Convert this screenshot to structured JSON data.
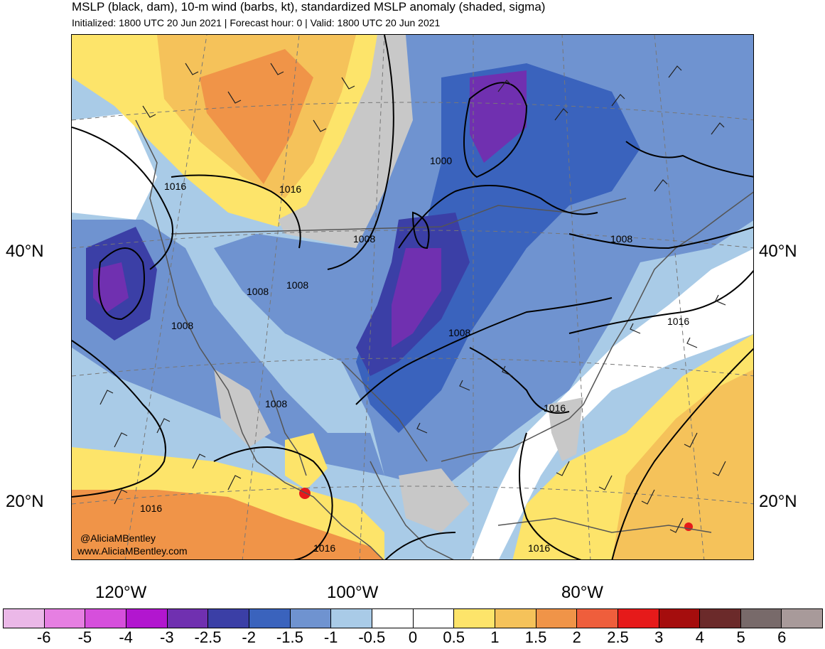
{
  "header": {
    "title": "MSLP (black, dam), 10-m wind (barbs, kt), standardized MSLP anomaly (shaded, sigma)",
    "subtitle": "Initialized: 1800 UTC 20 Jun 2021 | Forecast hour: 0 | Valid: 1800 UTC 20 Jun 2021"
  },
  "axes": {
    "lat_labels": [
      "40°N",
      "20°N"
    ],
    "lon_labels": [
      "120°W",
      "100°W",
      "80°W"
    ]
  },
  "isobars": {
    "labels": [
      "1016",
      "1016",
      "1000",
      "1008",
      "1008",
      "1008",
      "1008",
      "1008",
      "1008",
      "1016",
      "1016",
      "1008",
      "1016",
      "1016",
      "1016"
    ]
  },
  "credit": {
    "handle": "@AliciaMBentley",
    "website": "www.AliciaMBentley.com"
  },
  "colorbar": {
    "colors": [
      "#ebb8e8",
      "#e67fe2",
      "#d64fdc",
      "#b216cf",
      "#7030b0",
      "#3b3fa6",
      "#3a63bd",
      "#6f93d0",
      "#a9cbe7",
      "#ffffff",
      "#ffffff",
      "#fde46a",
      "#f5c25a",
      "#f09448",
      "#ef5e3c",
      "#e61a1a",
      "#a50d0d",
      "#6b2a2a",
      "#786a6a",
      "#a89a9a"
    ],
    "tick_labels": [
      "-6",
      "-5",
      "-4",
      "-3",
      "-2.5",
      "-2",
      "-1.5",
      "-1",
      "-0.5",
      "0",
      "0.5",
      "1",
      "1.5",
      "2",
      "2.5",
      "3",
      "4",
      "5",
      "6"
    ]
  }
}
